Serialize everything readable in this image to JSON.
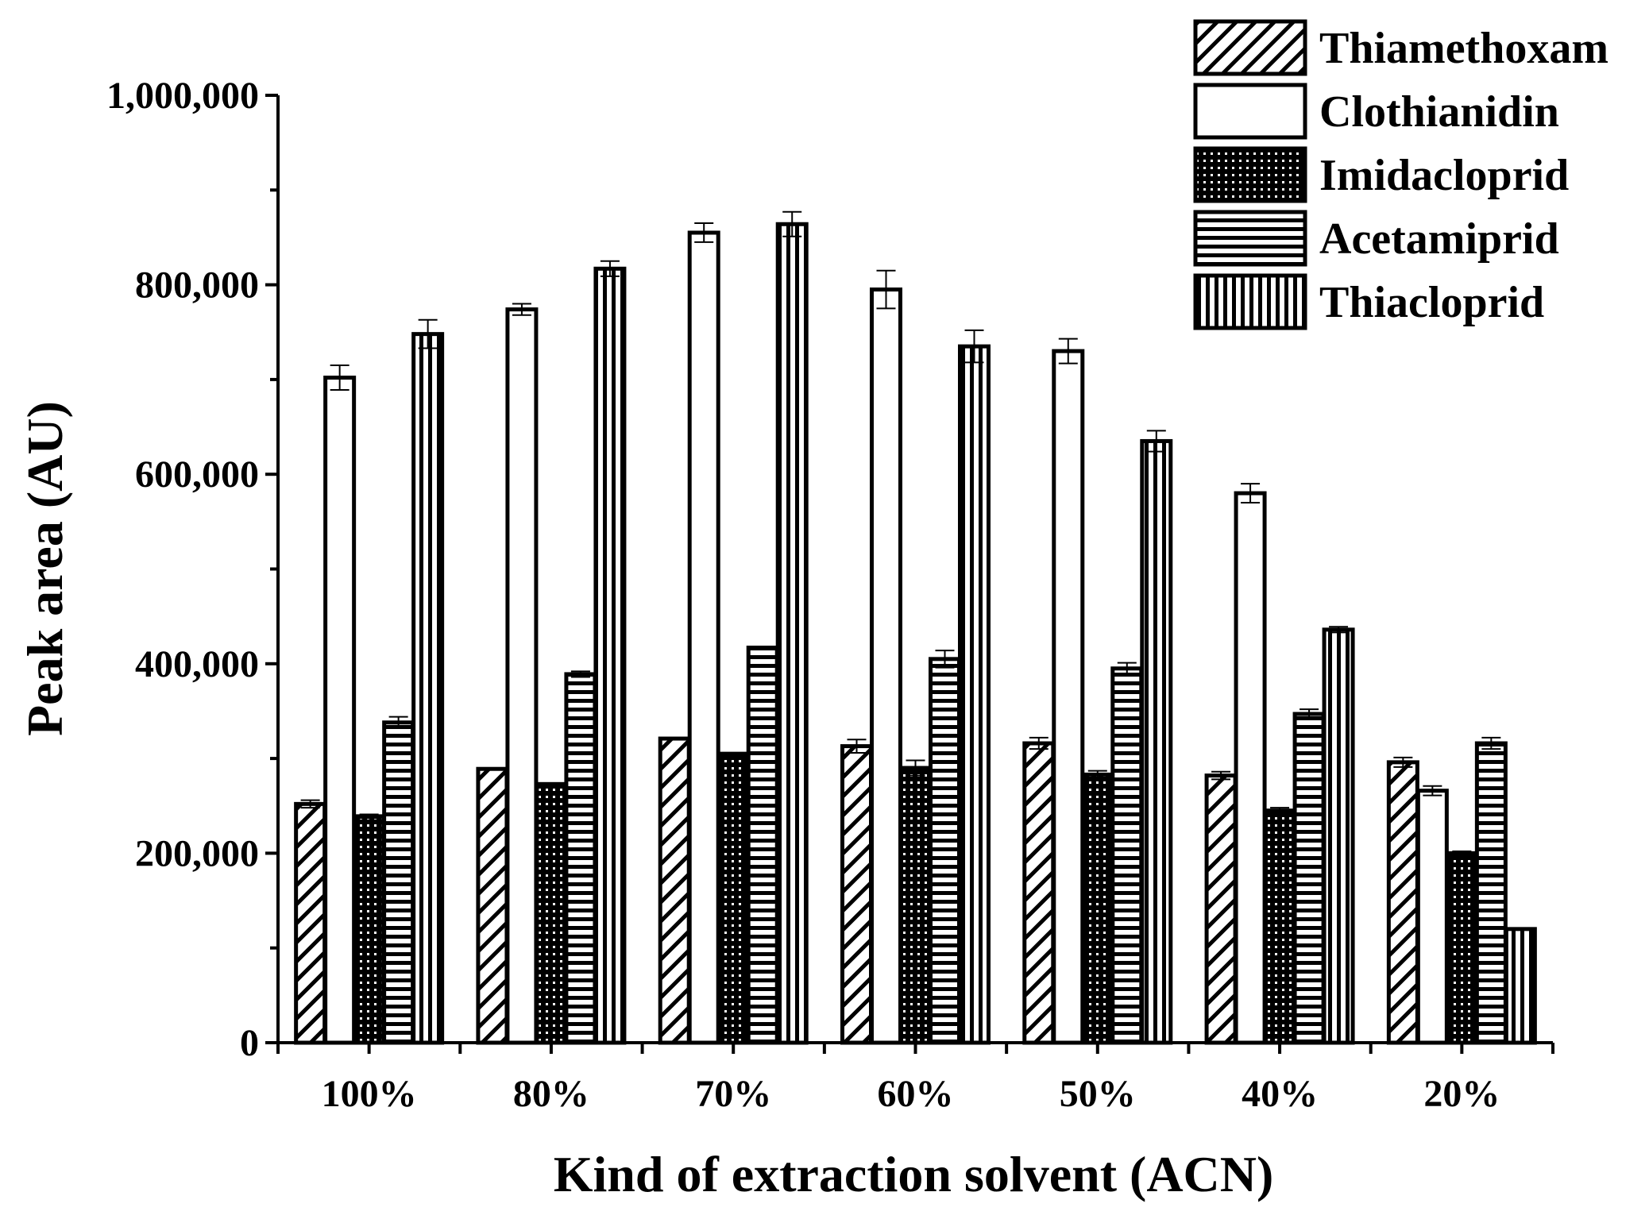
{
  "chart_data": {
    "type": "bar",
    "title": "",
    "xlabel": "Kind of extraction solvent (ACN)",
    "ylabel": "Peak area (AU)",
    "ylim": [
      0,
      1000000
    ],
    "yticks": [
      0,
      200000,
      400000,
      600000,
      800000,
      1000000
    ],
    "ytick_labels": [
      "0",
      "200,000",
      "400,000",
      "600,000",
      "800,000",
      "1,000,000"
    ],
    "categories": [
      "100%",
      "80%",
      "70%",
      "60%",
      "50%",
      "40%",
      "20%"
    ],
    "legend_position": "top-right",
    "grid": false,
    "series": [
      {
        "name": "Thiamethoxam",
        "pattern": "diagonal",
        "values": [
          252000,
          289000,
          321000,
          313000,
          316000,
          282000,
          296000
        ],
        "errors": [
          4000,
          0,
          0,
          7000,
          6000,
          4000,
          5000
        ]
      },
      {
        "name": "Clothianidin",
        "pattern": "none",
        "values": [
          702000,
          774000,
          855000,
          795000,
          730000,
          580000,
          266000
        ],
        "errors": [
          13000,
          6000,
          10000,
          20000,
          13000,
          10000,
          5000
        ]
      },
      {
        "name": "Imidacloprid",
        "pattern": "grid",
        "values": [
          239000,
          273000,
          305000,
          290000,
          283000,
          245000,
          200000
        ],
        "errors": [
          2000,
          0,
          0,
          8000,
          4000,
          3000,
          2000
        ]
      },
      {
        "name": "Acetamiprid",
        "pattern": "horizontal",
        "values": [
          338000,
          389000,
          417000,
          405000,
          395000,
          347000,
          316000
        ],
        "errors": [
          6000,
          3000,
          0,
          9000,
          6000,
          5000,
          6000
        ]
      },
      {
        "name": "Thiacloprid",
        "pattern": "vertical",
        "values": [
          748000,
          817000,
          864000,
          735000,
          635000,
          436000,
          120000
        ],
        "errors": [
          15000,
          8000,
          13000,
          17000,
          11000,
          3000,
          0
        ]
      }
    ]
  }
}
